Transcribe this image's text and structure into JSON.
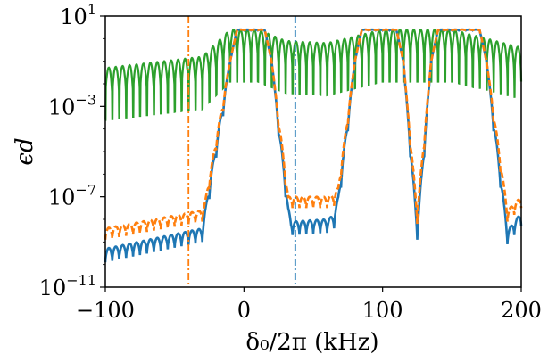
{
  "chart_data": {
    "type": "line",
    "xlabel": "δ₀/2π (kHz)",
    "ylabel": "ϵd",
    "xlim": [
      -100,
      200
    ],
    "ylim_log10": [
      -11,
      1
    ],
    "yscale": "log",
    "grid": false,
    "x_ticks": [
      -100,
      0,
      100,
      200
    ],
    "x_tick_labels": [
      "−100",
      "0",
      "100",
      "200"
    ],
    "y_ticks_exponent": [
      -11,
      -7,
      -3,
      1
    ],
    "y_tick_labels": [
      {
        "base": "10",
        "exp": "−11"
      },
      {
        "base": "10",
        "exp": "−7"
      },
      {
        "base": "10",
        "exp": "−3"
      },
      {
        "base": "10",
        "exp": "1"
      }
    ],
    "vertical_markers": [
      {
        "x": -40,
        "color": "#ff7f0e",
        "style": "dashdot"
      },
      {
        "x": 37,
        "color": "#1f77b4",
        "style": "dashdot"
      }
    ],
    "series": [
      {
        "color": "#2ca02c",
        "style": "solid",
        "envelope_log10": [
          [
            -100,
            -1.3
          ],
          [
            -30,
            -0.8
          ],
          [
            -10,
            0.4
          ],
          [
            10,
            0.4
          ],
          [
            30,
            -0.1
          ],
          [
            60,
            -0.2
          ],
          [
            100,
            0.4
          ],
          [
            150,
            0.4
          ],
          [
            200,
            -0.4
          ]
        ],
        "oscillation_period_khz": 5,
        "dip_depth_log10": 1.5
      },
      {
        "color": "#1f77b4",
        "style": "solid",
        "segments_log10": [
          [
            [
              -100,
              -9.3
            ],
            [
              -30,
              -8.4
            ],
            [
              -28,
              -7.6
            ],
            [
              -10,
              -1
            ],
            [
              -5,
              0.4
            ],
            [
              15,
              0.4
            ],
            [
              20,
              -1
            ],
            [
              32,
              -7.5
            ],
            [
              34,
              -8.1
            ],
            [
              60,
              -8.0
            ],
            [
              65,
              -7.8
            ],
            [
              68,
              -7.0
            ],
            [
              80,
              -1
            ],
            [
              85,
              0.4
            ],
            [
              110,
              0.4
            ],
            [
              115,
              -1
            ],
            [
              125,
              -8.3
            ],
            [
              135,
              -1
            ],
            [
              140,
              0.4
            ],
            [
              170,
              0.4
            ],
            [
              175,
              -1
            ],
            [
              190,
              -8.5
            ],
            [
              200,
              -7.7
            ]
          ]
        ],
        "oscillation_period_khz": 5,
        "dip_depth_log10": 0.6
      },
      {
        "color": "#ff7f0e",
        "style": "dashed",
        "segments_log10": [
          [
            [
              -100,
              -8.4
            ],
            [
              -30,
              -7.6
            ],
            [
              -28,
              -7.2
            ],
            [
              -10,
              -1
            ],
            [
              -5,
              0.4
            ],
            [
              15,
              0.4
            ],
            [
              20,
              -1
            ],
            [
              32,
              -7.0
            ],
            [
              34,
              -7.0
            ],
            [
              60,
              -7.0
            ],
            [
              65,
              -6.9
            ],
            [
              68,
              -6.6
            ],
            [
              80,
              -1
            ],
            [
              85,
              0.4
            ],
            [
              110,
              0.4
            ],
            [
              115,
              -1
            ],
            [
              125,
              -7.7
            ],
            [
              135,
              -1
            ],
            [
              140,
              0.4
            ],
            [
              170,
              0.4
            ],
            [
              175,
              -1
            ],
            [
              190,
              -7.6
            ],
            [
              200,
              -7.0
            ]
          ]
        ],
        "oscillation_period_khz": 5,
        "dip_depth_log10": 0.5
      }
    ]
  }
}
